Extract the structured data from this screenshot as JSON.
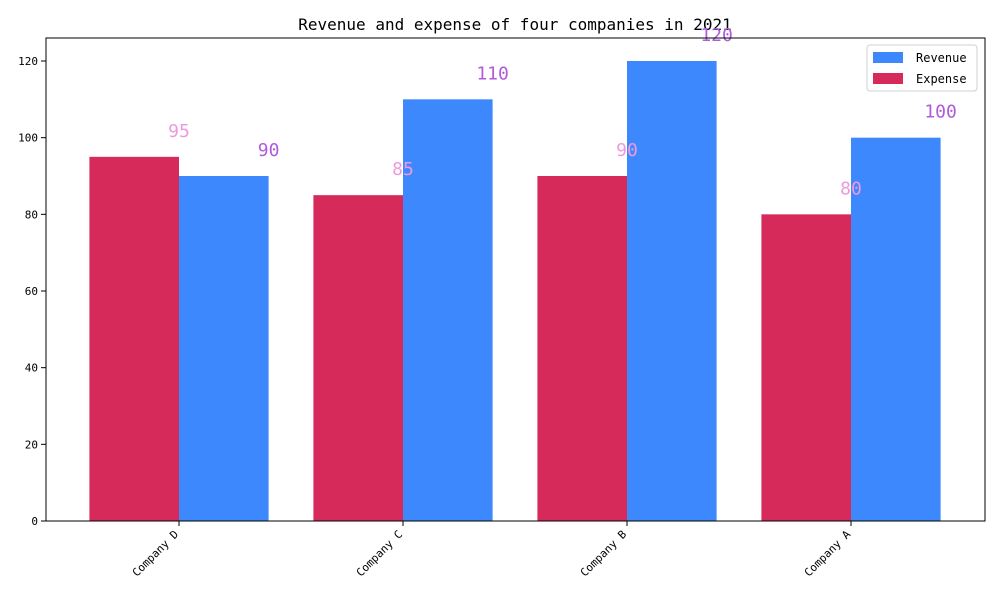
{
  "chart_data": {
    "type": "bar",
    "title": "Revenue and expense of four companies in 2021",
    "categories": [
      "Company D",
      "Company C",
      "Company B",
      "Company A"
    ],
    "series": [
      {
        "name": "Expense",
        "values": [
          95,
          85,
          90,
          80
        ],
        "color": "#d62a5b",
        "label_color": "#ee99dd"
      },
      {
        "name": "Revenue",
        "values": [
          90,
          110,
          120,
          100
        ],
        "color": "#3d88fd",
        "label_color": "#b05adc"
      }
    ],
    "xlabel": "",
    "ylabel": "",
    "ylim": [
      0,
      126
    ],
    "yticks": [
      0,
      20,
      40,
      60,
      80,
      100,
      120
    ],
    "legend": [
      {
        "name": "Revenue",
        "color": "#3d88fd"
      },
      {
        "name": "Expense",
        "color": "#d62a5b"
      }
    ],
    "legend_position": "top-right",
    "grid": false
  }
}
